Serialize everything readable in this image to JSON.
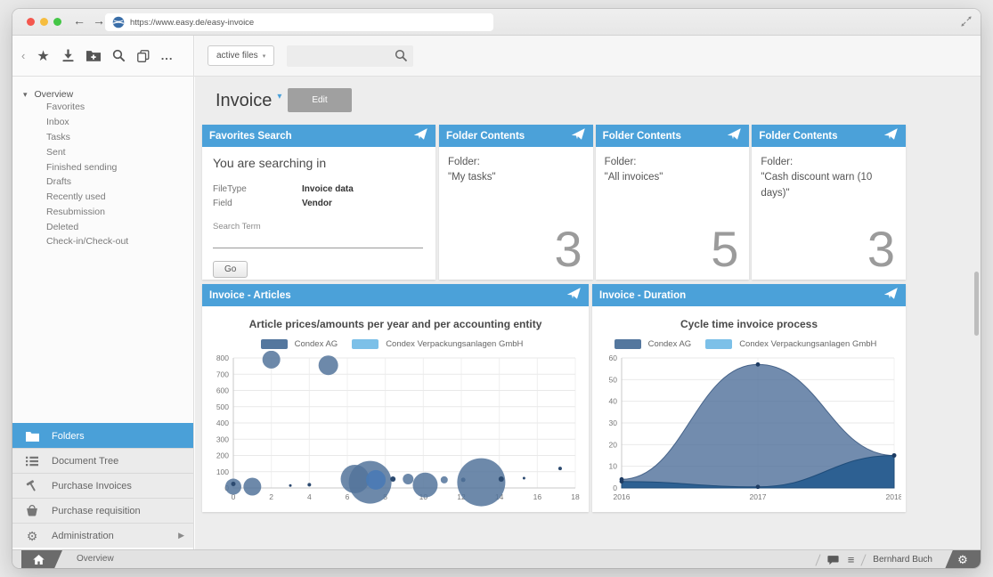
{
  "browser": {
    "url": "https://www.easy.de/easy-invoice",
    "traffic_lights": [
      "#f4574e",
      "#f6bd3f",
      "#44c646"
    ]
  },
  "toolbar": {
    "icons": [
      "back-chevron",
      "star",
      "download",
      "folder-add",
      "search",
      "copy",
      "more"
    ],
    "filter_label": "active files",
    "search_value": ""
  },
  "sidebar": {
    "tree_root": "Overview",
    "tree_items": [
      "Favorites",
      "Inbox",
      "Tasks",
      "Sent",
      "Finished sending",
      "Drafts",
      "Recently used",
      "Resubmission",
      "Deleted",
      "Check-in/Check-out"
    ],
    "menu": [
      {
        "label": "Folders",
        "icon": "folder",
        "selected": true
      },
      {
        "label": "Document Tree",
        "icon": "list",
        "selected": false
      },
      {
        "label": "Purchase Invoices",
        "icon": "hammer",
        "selected": false
      },
      {
        "label": "Purchase requisition",
        "icon": "basket",
        "selected": false
      },
      {
        "label": "Administration",
        "icon": "gear",
        "selected": false,
        "has_submenu": true
      }
    ],
    "selected_color": "#4aa0d8"
  },
  "main": {
    "page_title": "Invoice",
    "edit_button": "Edit",
    "favorites_search": {
      "header": "Favorites Search",
      "heading": "You are searching in",
      "rows": [
        {
          "label": "FileType",
          "value": "Invoice data"
        },
        {
          "label": "Field",
          "value": "Vendor"
        }
      ],
      "term_label": "Search Term",
      "term_value": "",
      "go_button": "Go"
    },
    "folder_cards": [
      {
        "header": "Folder Contents",
        "label": "Folder:",
        "name": "\"My tasks\"",
        "count": "3"
      },
      {
        "header": "Folder Contents",
        "label": "Folder:",
        "name": "\"All invoices\"",
        "count": "5"
      },
      {
        "header": "Folder Contents",
        "label": "Folder:",
        "name": "\"Cash discount warn (10 days)\"",
        "count": "3"
      }
    ],
    "articles_header": "Invoice - Articles",
    "duration_header": "Invoice - Duration",
    "header_color": "#4ba1d9"
  },
  "statusbar": {
    "left_label": "Overview",
    "user": "Bernhard Buch"
  },
  "chart_data": [
    {
      "type": "scatter",
      "variant": "bubble",
      "title": "Article prices/amounts per year and per accounting entity",
      "legend": [
        "Condex AG",
        "Condex Verpackungsanlagen GmbH"
      ],
      "colors": [
        "#54779e",
        "#7cc0e8"
      ],
      "bubble_colors": [
        "rgba(84,116,155,0.85)",
        "rgba(73,122,181,0.9)",
        "#2c4a70"
      ],
      "xlim": [
        0,
        18
      ],
      "ylim": [
        0,
        800
      ],
      "x_ticks": [
        0,
        2,
        4,
        6,
        8,
        10,
        12,
        14,
        16,
        18
      ],
      "y_ticks": [
        0,
        100,
        200,
        300,
        400,
        500,
        600,
        700,
        800
      ],
      "grid": true,
      "legend_position": "top",
      "bubbles": [
        {
          "x": 0,
          "y": 8,
          "r": 9,
          "c": 0
        },
        {
          "x": 0,
          "y": 25,
          "r": 2.5,
          "c": 2
        },
        {
          "x": 1,
          "y": 8,
          "r": 10,
          "c": 0
        },
        {
          "x": 2,
          "y": 790,
          "r": 10,
          "c": 0
        },
        {
          "x": 3,
          "y": 15,
          "r": 1.5,
          "c": 2
        },
        {
          "x": 4,
          "y": 20,
          "r": 2,
          "c": 2
        },
        {
          "x": 5,
          "y": 755,
          "r": 11,
          "c": 0
        },
        {
          "x": 6.4,
          "y": 55,
          "r": 16,
          "c": 0
        },
        {
          "x": 7.2,
          "y": 35,
          "r": 24,
          "c": 0
        },
        {
          "x": 7.5,
          "y": 50,
          "r": 11,
          "c": 1
        },
        {
          "x": 8.4,
          "y": 55,
          "r": 3,
          "c": 2
        },
        {
          "x": 9.2,
          "y": 55,
          "r": 6,
          "c": 0
        },
        {
          "x": 10.1,
          "y": 18,
          "r": 14,
          "c": 0
        },
        {
          "x": 11.1,
          "y": 50,
          "r": 4,
          "c": 0
        },
        {
          "x": 12.1,
          "y": 50,
          "r": 2.5,
          "c": 2
        },
        {
          "x": 13.05,
          "y": 35,
          "r": 27,
          "c": 0
        },
        {
          "x": 14.1,
          "y": 55,
          "r": 3,
          "c": 2
        },
        {
          "x": 15.3,
          "y": 60,
          "r": 1.5,
          "c": 2
        },
        {
          "x": 17.2,
          "y": 120,
          "r": 2,
          "c": 2
        }
      ]
    },
    {
      "type": "area",
      "title": "Cycle time invoice process",
      "legend": [
        "Condex AG",
        "Condex Verpackungsanlagen GmbH"
      ],
      "colors": [
        "#54779e",
        "#7cc0e8"
      ],
      "area_fills": [
        "rgba(83,115,156,0.82)",
        "rgba(39,92,143,0.92)"
      ],
      "area_strokes": [
        "rgba(60,90,130,0.9)",
        "rgba(30,75,120,0.95)"
      ],
      "marker_color": "#1e3c63",
      "categories": [
        "2016",
        "2017",
        "2018"
      ],
      "ylim": [
        0,
        60
      ],
      "y_ticks": [
        0,
        10,
        20,
        30,
        40,
        50,
        60
      ],
      "grid": true,
      "legend_position": "top",
      "series": [
        {
          "name": "Condex AG",
          "values": [
            4,
            57,
            15
          ]
        },
        {
          "name": "Condex Verpackungsanlagen GmbH",
          "values": [
            3,
            0.5,
            15
          ]
        }
      ]
    }
  ]
}
